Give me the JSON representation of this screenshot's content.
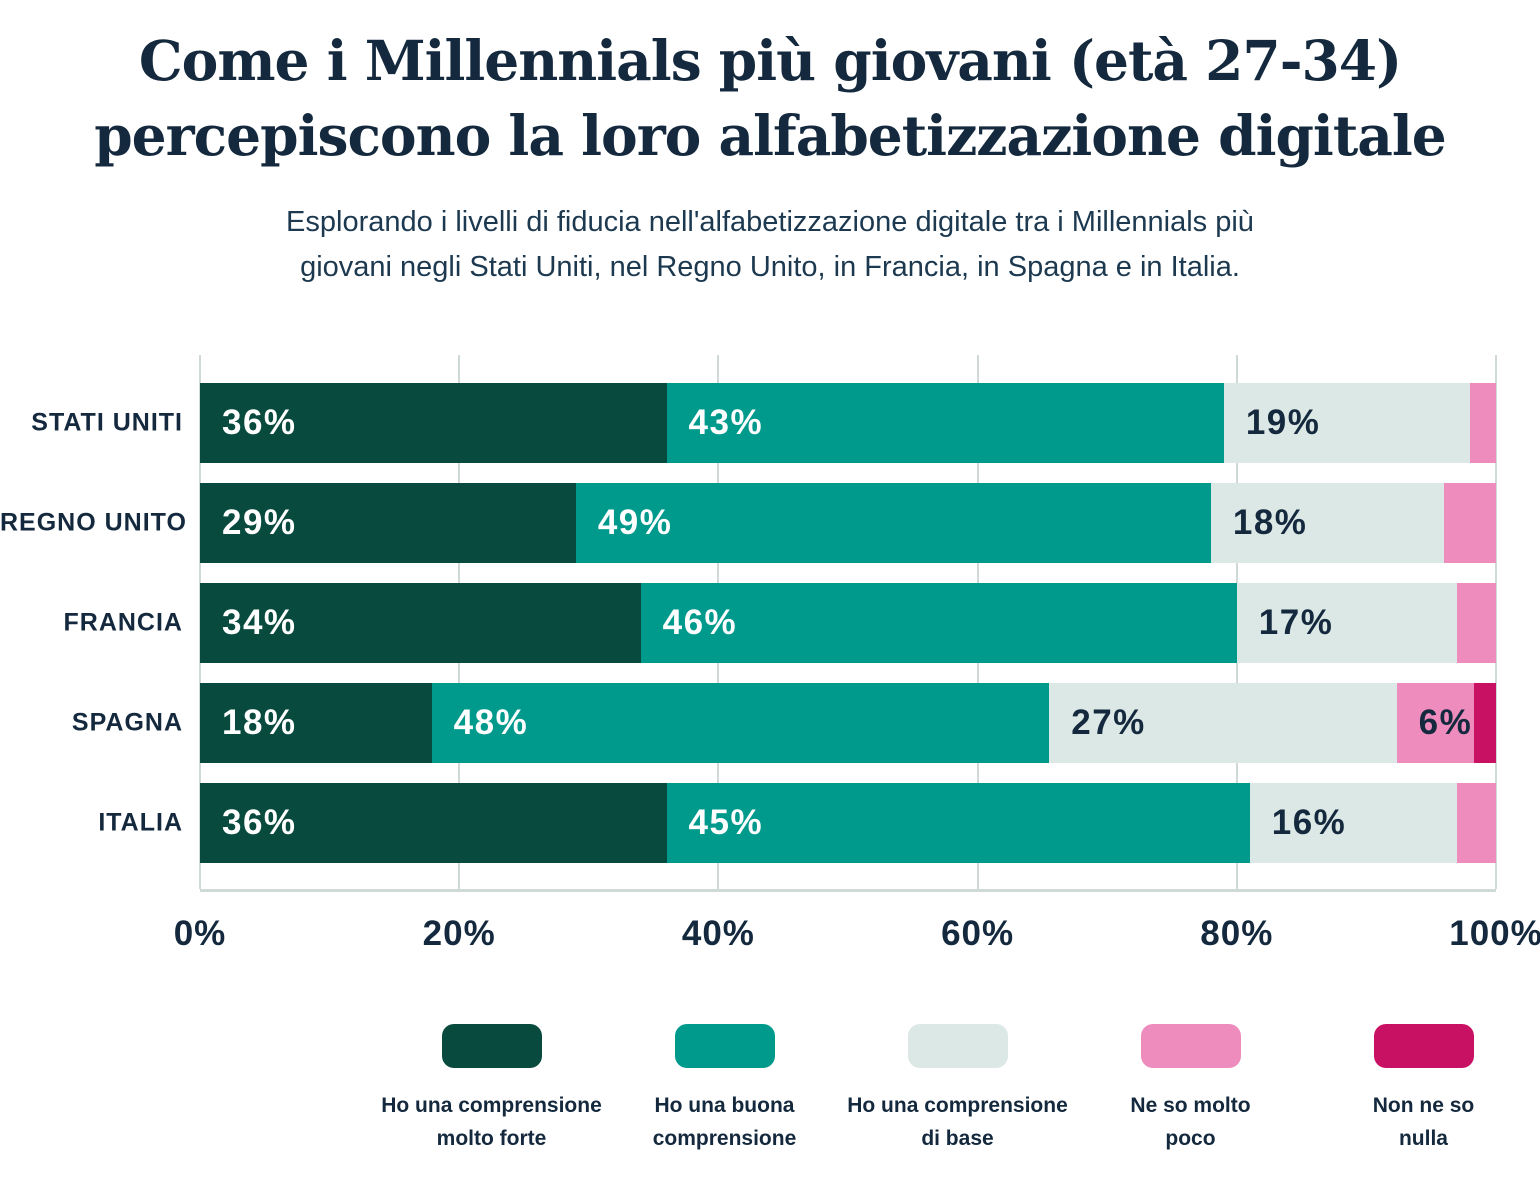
{
  "theme": {
    "background": "#ffffff",
    "text_navy": "#14293d",
    "gridline": "#cfd9d5"
  },
  "header": {
    "title_line1": "Come i Millennials più giovani (età 27-34)",
    "title_line2": "percepiscono la loro alfabetizzazione digitale",
    "subtitle_line1": "Esplorando i livelli di fiducia nell'alfabetizzazione digitale tra i Millennials più",
    "subtitle_line2": "giovani negli Stati Uniti, nel Regno Unito, in Francia, in Spagna e in Italia."
  },
  "chart_data": {
    "type": "bar",
    "orientation": "horizontal",
    "stacked": true,
    "title": "Come i Millennials più giovani (età 27-34) percepiscono la loro alfabetizzazione digitale",
    "subtitle": "Esplorando i livelli di fiducia nell'alfabetizzazione digitale tra i Millennials più giovani negli Stati Uniti, nel Regno Unito, in Francia, in Spagna e in Italia.",
    "xlim": [
      0,
      100
    ],
    "x_ticks": [
      "0%",
      "20%",
      "40%",
      "60%",
      "80%",
      "100%"
    ],
    "x_tick_values": [
      0,
      20,
      40,
      60,
      80,
      100
    ],
    "grid": true,
    "legend_position": "bottom",
    "value_suffix": "%",
    "label_min_value": 6,
    "categories": [
      "STATI UNITI",
      "REGNO UNITO",
      "FRANCIA",
      "SPAGNA",
      "ITALIA"
    ],
    "series": [
      {
        "name": "Ho una comprensione\nmolto forte",
        "color": "#084a3e",
        "label_color": "#ffffff",
        "values": [
          36,
          29,
          34,
          18,
          36
        ]
      },
      {
        "name": "Ho una buona\ncomprensione",
        "color": "#009a8d",
        "label_color": "#ffffff",
        "values": [
          43,
          49,
          46,
          48,
          45
        ]
      },
      {
        "name": "Ho una comprensione\ndi base",
        "color": "#dce8e5",
        "label_color": "#14293d",
        "values": [
          19,
          18,
          17,
          27,
          16
        ]
      },
      {
        "name": "Ne so molto\npoco",
        "color": "#ed8cbd",
        "label_color": "#14293d",
        "values": [
          2,
          4,
          3,
          6,
          3
        ]
      },
      {
        "name": "Non ne so\nnulla",
        "color": "#c91164",
        "label_color": "#ffffff",
        "values": [
          0,
          0,
          0,
          1,
          0
        ]
      }
    ]
  }
}
